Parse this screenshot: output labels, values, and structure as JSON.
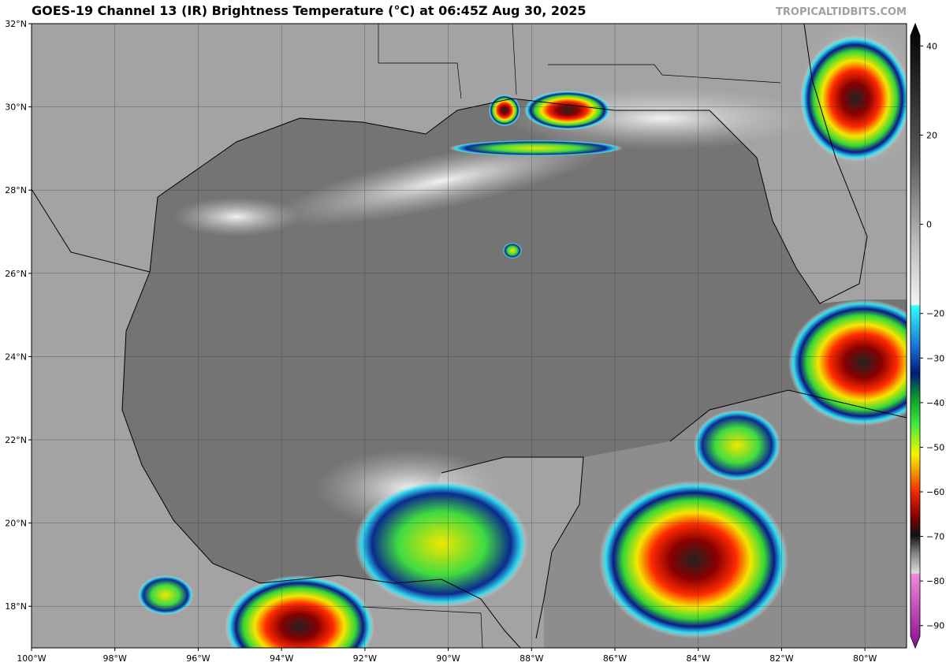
{
  "header": {
    "title": "GOES-19 Channel 13 (IR) Brightness Temperature (°C) at 06:45Z Aug 30, 2025",
    "source": "TROPICALTIDBITS.COM"
  },
  "map": {
    "lon_extent": [
      -100,
      -79
    ],
    "lat_extent": [
      17,
      32
    ],
    "lon_ticks": [
      {
        "value": -100,
        "label": "100°W"
      },
      {
        "value": -98,
        "label": "98°W"
      },
      {
        "value": -96,
        "label": "96°W"
      },
      {
        "value": -94,
        "label": "94°W"
      },
      {
        "value": -92,
        "label": "92°W"
      },
      {
        "value": -90,
        "label": "90°W"
      },
      {
        "value": -88,
        "label": "88°W"
      },
      {
        "value": -86,
        "label": "86°W"
      },
      {
        "value": -84,
        "label": "84°W"
      },
      {
        "value": -82,
        "label": "82°W"
      },
      {
        "value": -80,
        "label": "80°W"
      }
    ],
    "lat_ticks": [
      {
        "value": 18,
        "label": "18°N"
      },
      {
        "value": 20,
        "label": "20°N"
      },
      {
        "value": 22,
        "label": "22°N"
      },
      {
        "value": 24,
        "label": "24°N"
      },
      {
        "value": 26,
        "label": "26°N"
      },
      {
        "value": 28,
        "label": "28°N"
      },
      {
        "value": 30,
        "label": "30°N"
      },
      {
        "value": 32,
        "label": "32°N"
      }
    ]
  },
  "colorbar": {
    "range": [
      -95,
      45
    ],
    "ticks": [
      {
        "value": 40,
        "label": "40"
      },
      {
        "value": 20,
        "label": "20"
      },
      {
        "value": 0,
        "label": "0"
      },
      {
        "value": -20,
        "label": "−20"
      },
      {
        "value": -30,
        "label": "−30"
      },
      {
        "value": -40,
        "label": "−40"
      },
      {
        "value": -50,
        "label": "−50"
      },
      {
        "value": -60,
        "label": "−60"
      },
      {
        "value": -70,
        "label": "−70"
      },
      {
        "value": -80,
        "label": "−80"
      },
      {
        "value": -90,
        "label": "−90"
      }
    ]
  }
}
